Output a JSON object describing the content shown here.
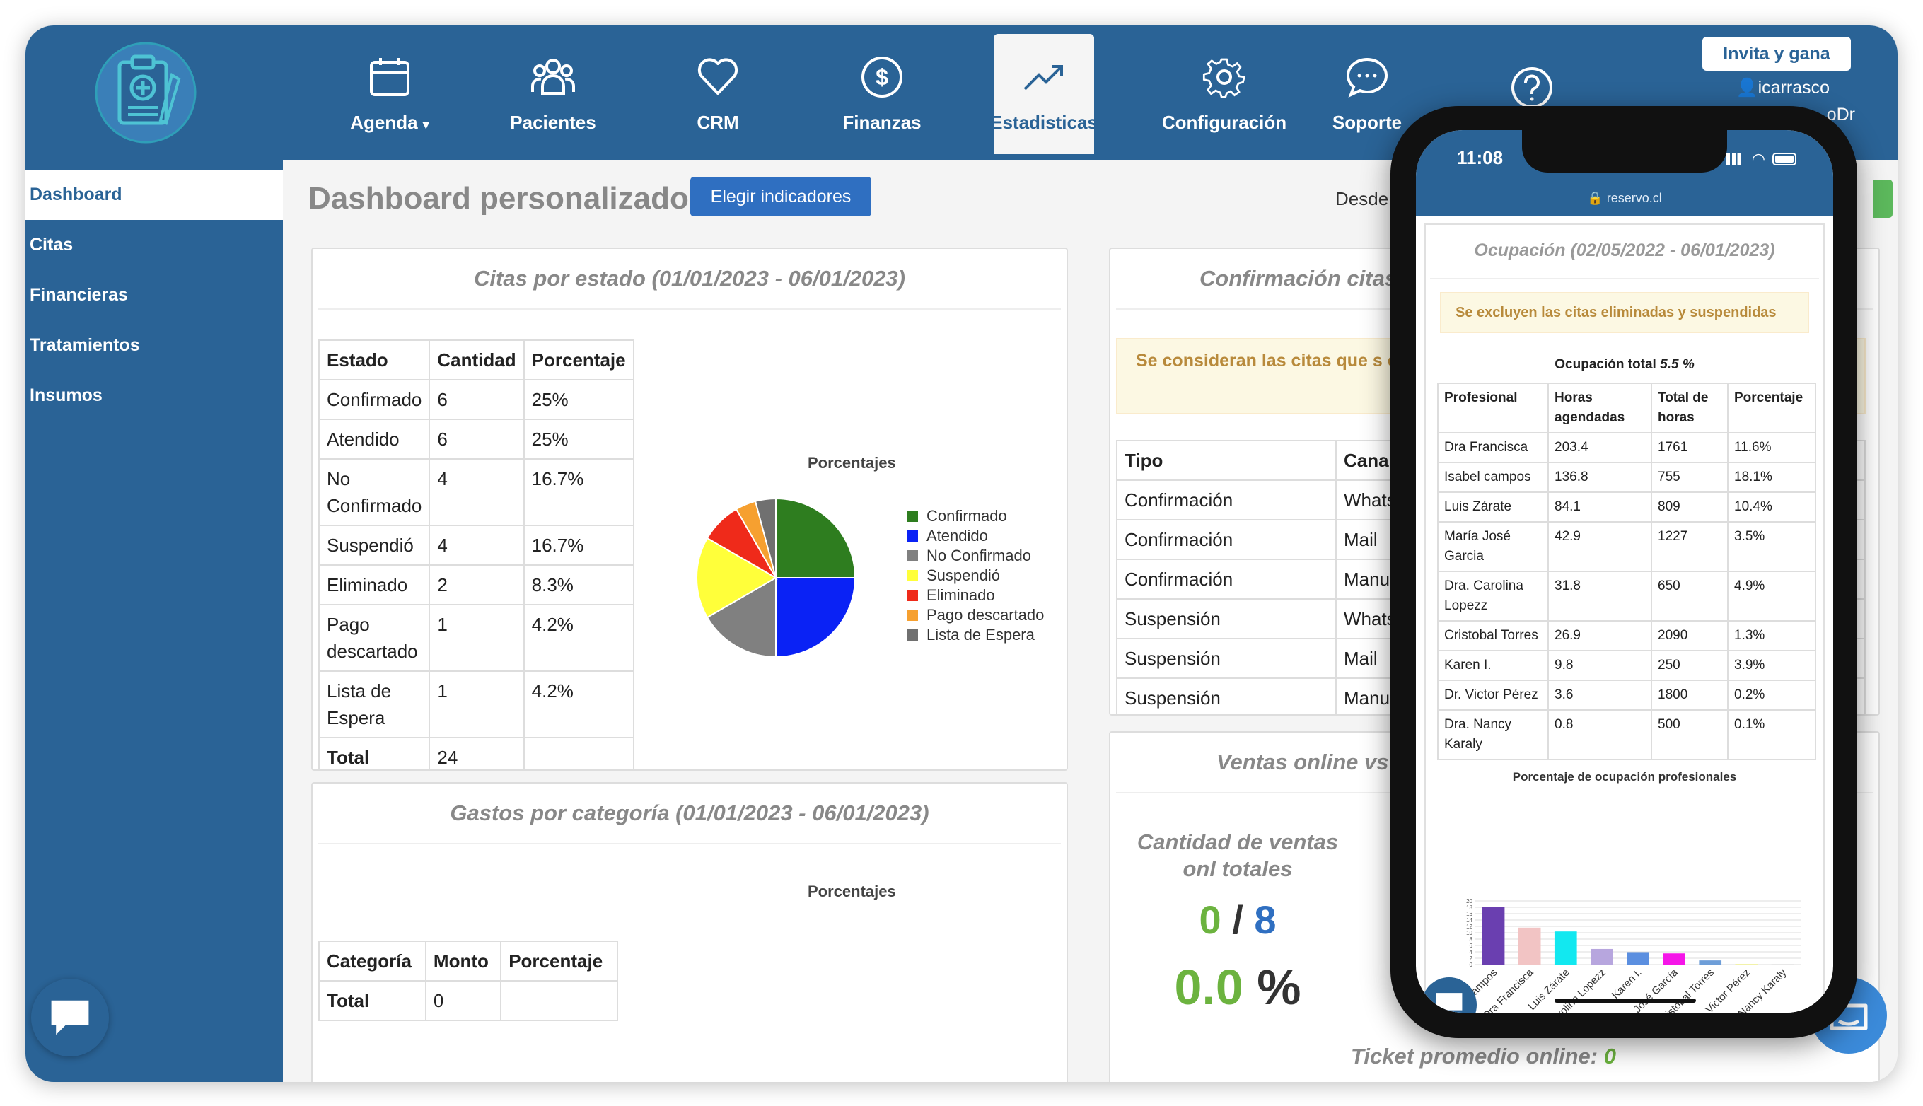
{
  "nav": {
    "items": [
      {
        "label": "Agenda",
        "icon": "calendar-icon",
        "caret": true
      },
      {
        "label": "Pacientes",
        "icon": "users-icon"
      },
      {
        "label": "CRM",
        "icon": "heart-icon"
      },
      {
        "label": "Finanzas",
        "icon": "dollar-icon"
      },
      {
        "label": "Estadisticas",
        "icon": "trend-icon",
        "active": true
      },
      {
        "label": "Configuración",
        "icon": "gear-icon"
      },
      {
        "label": "Soporte",
        "icon": "chat-icon"
      },
      {
        "label": "",
        "icon": "help-icon"
      }
    ],
    "invite_label": "Invita y gana",
    "user_name": "icarrasco",
    "user_extra": "oDr"
  },
  "sidebar": {
    "items": [
      {
        "label": "Dashboard",
        "active": true
      },
      {
        "label": "Citas"
      },
      {
        "label": "Financieras"
      },
      {
        "label": "Tratamientos"
      },
      {
        "label": "Insumos"
      }
    ]
  },
  "main": {
    "title": "Dashboard personalizado",
    "choose_button": "Elegir indicadores",
    "desde_label": "Desde"
  },
  "citas_panel": {
    "title": "Citas por estado (01/01/2023 - 06/01/2023)",
    "headers": [
      "Estado",
      "Cantidad",
      "Porcentaje"
    ],
    "rows": [
      [
        "Confirmado",
        "6",
        "25%"
      ],
      [
        "Atendido",
        "6",
        "25%"
      ],
      [
        "No Confirmado",
        "4",
        "16.7%"
      ],
      [
        "Suspendió",
        "4",
        "16.7%"
      ],
      [
        "Eliminado",
        "2",
        "8.3%"
      ],
      [
        "Pago descartado",
        "1",
        "4.2%"
      ],
      [
        "Lista de Espera",
        "1",
        "4.2%"
      ]
    ],
    "total_label": "Total",
    "total_value": "24",
    "chart_title": "Porcentajes"
  },
  "chart_data": [
    {
      "type": "pie",
      "title": "Porcentajes",
      "labels": [
        "Confirmado",
        "Atendido",
        "No Confirmado",
        "Suspendió",
        "Eliminado",
        "Pago descartado",
        "Lista de Espera"
      ],
      "values": [
        6,
        6,
        4,
        4,
        2,
        1,
        1
      ],
      "colors": [
        "#2e7d1f",
        "#0a22f5",
        "#808080",
        "#ffff3a",
        "#ef2a1a",
        "#f6a030",
        "#707070"
      ],
      "legend": "right"
    },
    {
      "type": "bar",
      "title": "Porcentaje de ocupación profesionales",
      "categories": [
        "Isabel campos",
        "Dra Francisca",
        "Luis Zárate",
        "Dra. Carolina Lopezz",
        "Karen I.",
        "María José García",
        "Cristobal Torres",
        "Dr. Victor Pérez",
        "Dra. Nancy Karaly"
      ],
      "tick_labels": [
        "campos",
        "Dra Francisca",
        "Luis Zárate",
        "Dra. Carolina Lopezz",
        "Karen I.",
        "María José García",
        "Cristobal Torres",
        "Dr. Victor Pérez",
        "Dra. Nancy Karaly"
      ],
      "values": [
        18.1,
        11.6,
        10.4,
        4.9,
        3.9,
        3.5,
        1.3,
        0.2,
        0.1
      ],
      "colors": [
        "#6a3fb0",
        "#f2c4c4",
        "#12e8f0",
        "#b7a6de",
        "#5b8fe0",
        "#f515e8",
        "#6e9ed8",
        "#f0f0a0",
        "#d0d0d0"
      ],
      "ylim": [
        0,
        20
      ]
    }
  ],
  "gastos_panel": {
    "title": "Gastos por categoría (01/01/2023 - 06/01/2023)",
    "chart_title": "Porcentajes",
    "headers": [
      "Categoría",
      "Monto",
      "Porcentaje"
    ],
    "total_label": "Total",
    "total_value": "0"
  },
  "confirm_panel": {
    "title": "Confirmación citas",
    "warning": "Se consideran las citas que s excluyen las citas eliminadas",
    "headers": [
      "Tipo",
      "Canal"
    ],
    "rows": [
      [
        "Confirmación",
        "Whats"
      ],
      [
        "Confirmación",
        "Mail"
      ],
      [
        "Confirmación",
        "Manua"
      ],
      [
        "Suspensión",
        "Whats"
      ],
      [
        "Suspensión",
        "Mail"
      ],
      [
        "Suspensión",
        "Manua"
      ]
    ]
  },
  "ventas_panel": {
    "title": "Ventas online vs",
    "subtitle": "Cantidad de ventas onl totales",
    "count_online": "0",
    "count_sep": "/",
    "count_total": "8",
    "percent_value": "0.0",
    "percent_sign": "%",
    "ticket_label": "Ticket promedio online:",
    "ticket_value": "0"
  },
  "phone": {
    "time": "11:08",
    "url": "reservo.cl",
    "title": "Ocupación (02/05/2022 - 06/01/2023)",
    "warning": "Se excluyen las citas eliminadas y suspendidas",
    "total_label": "Ocupación total",
    "total_value": "5.5 %",
    "headers": [
      "Profesional",
      "Horas agendadas",
      "Total de horas",
      "Porcentaje"
    ],
    "rows": [
      [
        "Dra Francisca",
        "203.4",
        "1761",
        "11.6%"
      ],
      [
        "Isabel campos",
        "136.8",
        "755",
        "18.1%"
      ],
      [
        "Luis Zárate",
        "84.1",
        "809",
        "10.4%"
      ],
      [
        "María José Garcia",
        "42.9",
        "1227",
        "3.5%"
      ],
      [
        "Dra. Carolina Lopezz",
        "31.8",
        "650",
        "4.9%"
      ],
      [
        "Cristobal Torres",
        "26.9",
        "2090",
        "1.3%"
      ],
      [
        "Karen I.",
        "9.8",
        "250",
        "3.9%"
      ],
      [
        "Dr. Victor Pérez",
        "3.6",
        "1800",
        "0.2%"
      ],
      [
        "Dra. Nancy Karaly",
        "0.8",
        "500",
        "0.1%"
      ]
    ],
    "chart_title": "Porcentaje de ocupación profesionales",
    "y_ticks": [
      "20",
      "18",
      "16",
      "14",
      "12",
      "10",
      "8",
      "6",
      "4",
      "2",
      "0"
    ]
  },
  "colors": {
    "brand": "#2a6396",
    "accent_button": "#2f6fc1",
    "green": "#6cb33f",
    "blue": "#2f6fc1"
  }
}
